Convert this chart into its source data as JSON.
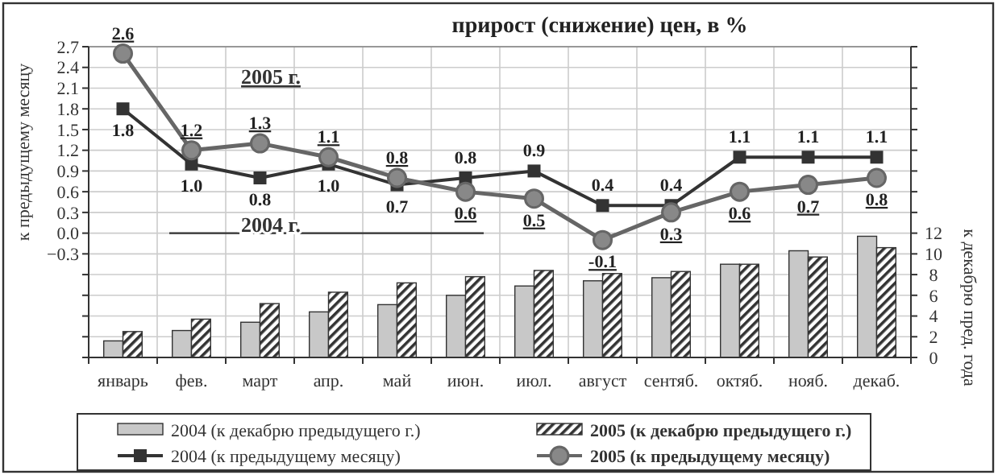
{
  "chart_data": {
    "type": "bar",
    "title": "прирост (снижение) цен, в %",
    "ylabel": "к предыдущему месяцу",
    "y2label": "к декабрю пред. года",
    "annotations": [
      "2005 г.",
      "2004 г."
    ],
    "categories": [
      "январь",
      "фев.",
      "март",
      "апр.",
      "май",
      "июн.",
      "июл.",
      "август",
      "сентяб.",
      "октяб.",
      "нояб.",
      "декаб."
    ],
    "series": [
      {
        "name": "2004 (к декабрю предыдущего г.)",
        "axis": "y2",
        "color": "#c8c8c8",
        "values": [
          1.6,
          2.6,
          3.4,
          4.4,
          5.1,
          6.0,
          6.9,
          7.4,
          7.7,
          9.0,
          10.3,
          11.7
        ]
      },
      {
        "name": "2005 (к декабрю предыдущего г.)",
        "axis": "y2",
        "color": "#333333",
        "values": [
          2.5,
          3.7,
          5.2,
          6.3,
          7.2,
          7.8,
          8.4,
          8.1,
          8.3,
          9.0,
          9.7,
          10.6
        ]
      },
      {
        "name": "2004 (к предыдущему месяцу)",
        "type": "line",
        "marker": "square",
        "color": "#333333",
        "values": [
          1.8,
          1.0,
          0.8,
          1.0,
          0.7,
          0.8,
          0.9,
          0.4,
          0.4,
          1.1,
          1.1,
          1.1
        ],
        "value_labels": [
          "1.8",
          "1.0",
          "0.8",
          "1.0",
          "0.7",
          "0.8",
          "0.9",
          "0.4",
          "0.4",
          "1.1",
          "1.1",
          "1.1"
        ]
      },
      {
        "name": "2005 (к предыдущему месяцу)",
        "type": "line",
        "marker": "circle",
        "color": "#666666",
        "values": [
          2.6,
          1.2,
          1.3,
          1.1,
          0.8,
          0.6,
          0.5,
          -0.1,
          0.3,
          0.6,
          0.7,
          0.8
        ],
        "value_labels": [
          "2.6",
          "1.2",
          "1.3",
          "1.1",
          "0.8",
          "0.6",
          "0.5",
          "-0.1",
          "0.3",
          "0.6",
          "0.7",
          "0.8"
        ]
      }
    ],
    "ylim": [
      -1.8,
      2.7
    ],
    "yticks": [
      {
        "value": -1.8,
        "label": null
      },
      {
        "value": -1.5,
        "label": null
      },
      {
        "value": -1.2,
        "label": null
      },
      {
        "value": -0.9,
        "label": null
      },
      {
        "value": -0.6,
        "label": null
      },
      -0.3,
      {
        "value": 0,
        "label": "0.0"
      },
      0.3,
      0.6,
      0.9,
      1.2,
      1.5,
      1.8,
      2.1,
      2.4,
      2.7
    ],
    "y2lim": [
      0,
      30
    ],
    "y2ticks": [
      0,
      2,
      4,
      6,
      8,
      10,
      12,
      {
        "value": 14,
        "label": null
      },
      {
        "value": 16,
        "label": null
      },
      {
        "value": 18,
        "label": null
      },
      {
        "value": 20,
        "label": null
      },
      {
        "value": 22,
        "label": null
      },
      {
        "value": 24,
        "label": null
      },
      {
        "value": 26,
        "label": null
      },
      {
        "value": 28,
        "label": null
      },
      {
        "value": 30,
        "label": null
      }
    ],
    "grid": true,
    "legend": "bottom"
  }
}
